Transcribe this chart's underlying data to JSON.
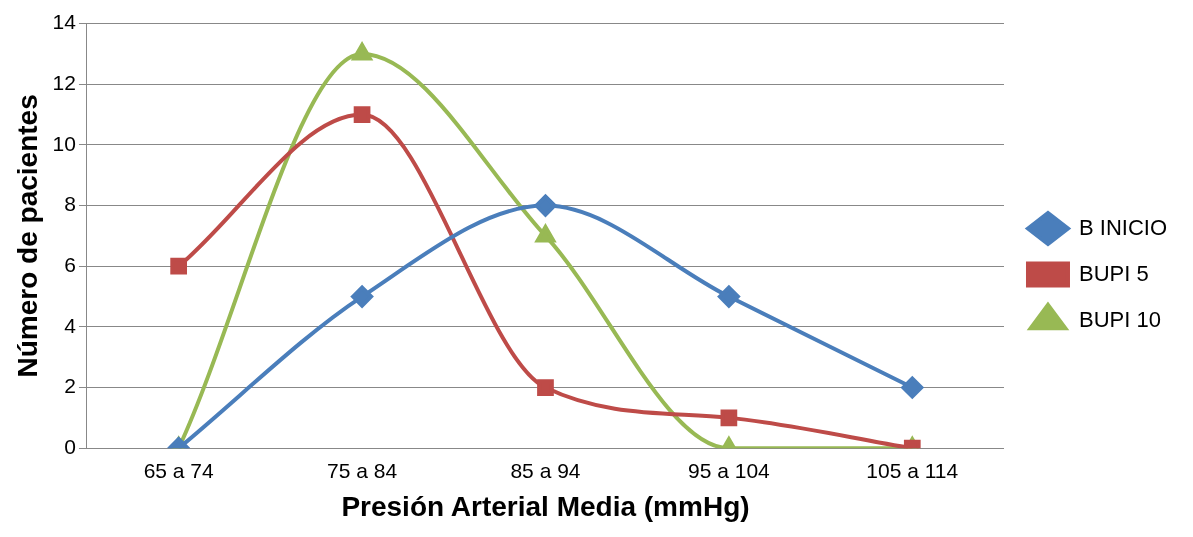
{
  "chart_data": {
    "type": "line",
    "xlabel": "Presión Arterial Media (mmHg)",
    "ylabel": "Número de pacientes",
    "categories": [
      "65 a 74",
      "75 a 84",
      "85 a 94",
      "95 a 104",
      "105 a 114"
    ],
    "series": [
      {
        "name": "B INICIO",
        "color": "#4a7ebb",
        "values": [
          0,
          5,
          8,
          5,
          2
        ],
        "marker": "diamond"
      },
      {
        "name": "BUPI 5",
        "color": "#be4b48",
        "values": [
          6,
          11,
          2,
          1,
          0
        ],
        "marker": "square"
      },
      {
        "name": "BUPI 10",
        "color": "#98b954",
        "values": [
          0,
          13,
          7,
          0,
          0
        ],
        "marker": "triangle"
      }
    ],
    "ylim": [
      0,
      14
    ],
    "yticks": [
      0,
      2,
      4,
      6,
      8,
      10,
      12,
      14
    ],
    "grid": "y",
    "legend": "right",
    "line_style": "solid"
  }
}
